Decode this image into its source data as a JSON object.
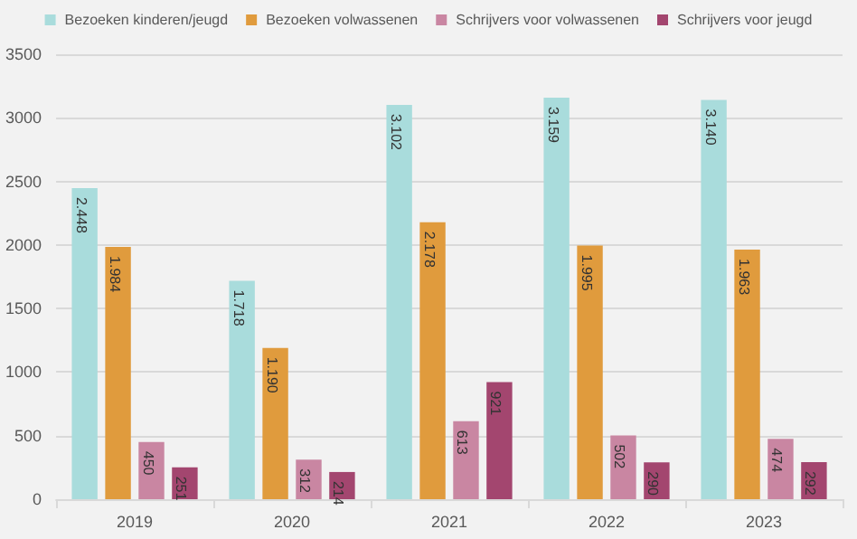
{
  "chart_data": {
    "type": "bar",
    "categories": [
      "2019",
      "2020",
      "2021",
      "2022",
      "2023"
    ],
    "series": [
      {
        "name": "Bezoeken kinderen/jeugd",
        "color": "#a9dcdc",
        "values": [
          2448,
          1718,
          3102,
          3159,
          3140
        ],
        "value_labels": [
          "2.448",
          "1.718",
          "3.102",
          "3.159",
          "3.140"
        ]
      },
      {
        "name": "Bezoeken volwassenen",
        "color": "#e09b3d",
        "values": [
          1984,
          1190,
          2178,
          1995,
          1963
        ],
        "value_labels": [
          "1.984",
          "1.190",
          "2.178",
          "1.995",
          "1.963"
        ]
      },
      {
        "name": "Schrijvers voor volwassenen",
        "color": "#c986a2",
        "values": [
          450,
          312,
          613,
          502,
          474
        ],
        "value_labels": [
          "450",
          "312",
          "613",
          "502",
          "474"
        ]
      },
      {
        "name": "Schrijvers voor jeugd",
        "color": "#a3466f",
        "values": [
          251,
          214,
          921,
          290,
          292
        ],
        "value_labels": [
          "251",
          "214",
          "921",
          "290",
          "292"
        ]
      }
    ],
    "ylim": [
      0,
      3500
    ],
    "yticks": [
      0,
      500,
      1000,
      1500,
      2000,
      2500,
      3000,
      3500
    ],
    "grid": "y",
    "legend": "top"
  }
}
